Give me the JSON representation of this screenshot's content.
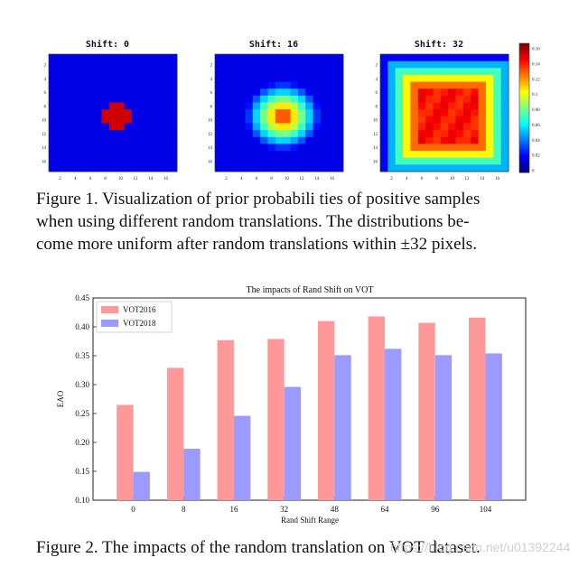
{
  "figure1": {
    "panels": [
      {
        "title": "Shift: 0",
        "shift": 0
      },
      {
        "title": "Shift: 16",
        "shift": 16
      },
      {
        "title": "Shift: 32",
        "shift": 32
      }
    ],
    "axis_ticks": [
      "2",
      "4",
      "6",
      "8",
      "10",
      "12",
      "14",
      "16"
    ],
    "colorbar_ticks": [
      "0.16",
      "0.14",
      "0.12",
      "0.1",
      "0.08",
      "0.06",
      "0.04",
      "0.02",
      "0"
    ],
    "caption_lines": [
      "Figure 1. Visualization of prior probabili ties of positive samples",
      "when using different random translations.  The distributions be-",
      "come more uniform after random translations within ±32 pixels."
    ]
  },
  "chart_data": {
    "type": "bar",
    "title": "The impacts of Rand Shift on VOT",
    "xlabel": "Rand Shift Range",
    "ylabel": "EAO",
    "categories": [
      "0",
      "8",
      "16",
      "32",
      "48",
      "64",
      "96",
      "104"
    ],
    "series": [
      {
        "name": "VOT2016",
        "color": "#ff9999",
        "values": [
          0.265,
          0.329,
          0.377,
          0.379,
          0.41,
          0.418,
          0.407,
          0.416
        ]
      },
      {
        "name": "VOT2018",
        "color": "#9b9bff",
        "values": [
          0.149,
          0.189,
          0.246,
          0.296,
          0.351,
          0.362,
          0.351,
          0.354
        ]
      }
    ],
    "ylim": [
      0.1,
      0.45
    ],
    "yticks": [
      "0.10",
      "0.15",
      "0.20",
      "0.25",
      "0.30",
      "0.35",
      "0.40",
      "0.45"
    ],
    "legend": "top-left",
    "grid": false
  },
  "figure2": {
    "caption": "Figure 2. The impacts of the random translation on VOT dataset."
  },
  "watermark": "https://blog.csdn.net/u01392244"
}
